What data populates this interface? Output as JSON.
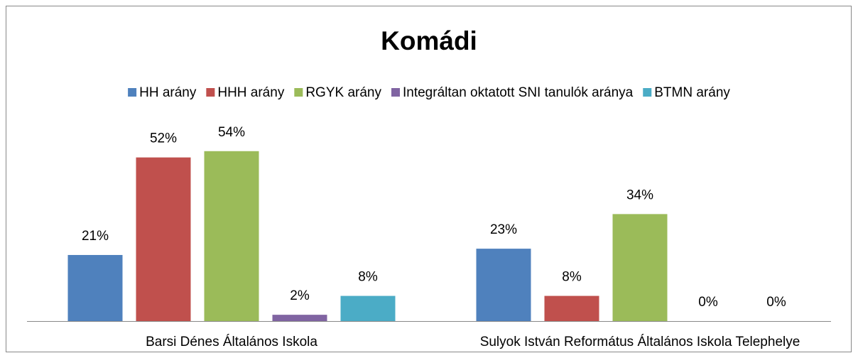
{
  "chart_data": {
    "type": "bar",
    "title": "Komádi",
    "categories": [
      "Barsi Dénes Általános Iskola",
      "Sulyok István Református Általános Iskola Telephelye"
    ],
    "series": [
      {
        "name": "HH arány",
        "color": "#4f81bd",
        "values": [
          21,
          23
        ],
        "value_labels": [
          "21%",
          "23%"
        ]
      },
      {
        "name": "HHH arány",
        "color": "#c0504d",
        "values": [
          52,
          8
        ],
        "value_labels": [
          "52%",
          "8%"
        ]
      },
      {
        "name": "RGYK arány",
        "color": "#9bbb59",
        "values": [
          54,
          34
        ],
        "value_labels": [
          "54%",
          "34%"
        ]
      },
      {
        "name": "Integráltan oktatott SNI tanulók aránya",
        "color": "#8064a2",
        "values": [
          2,
          0
        ],
        "value_labels": [
          "2%",
          "0%"
        ]
      },
      {
        "name": "BTMN arány",
        "color": "#4bacc6",
        "values": [
          8,
          0
        ],
        "value_labels": [
          "8%",
          "0%"
        ]
      }
    ],
    "legend": "top"
  }
}
